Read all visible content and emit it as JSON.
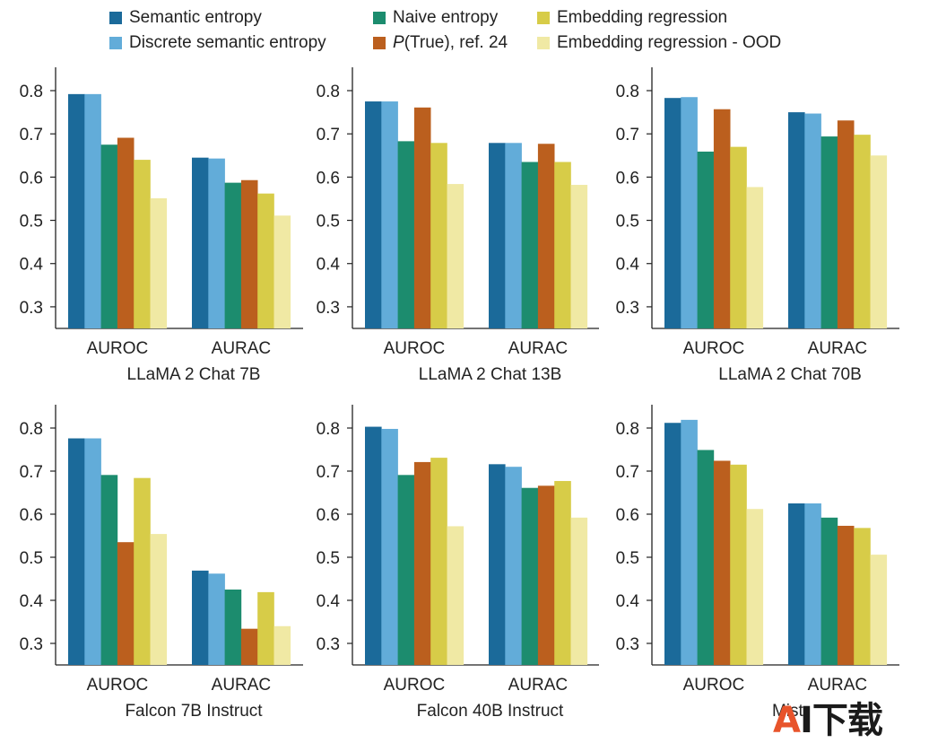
{
  "legend": [
    {
      "label": "Semantic entropy",
      "color": "#1b6a9a"
    },
    {
      "label": "Discrete semantic entropy",
      "color": "#62acd9"
    },
    {
      "label": "Naive entropy",
      "color": "#1c8c6e"
    },
    {
      "label": "P(True), ref. 24",
      "label_italic": "P",
      "label_rest": "(True), ref. 24",
      "color": "#bb5f1e"
    },
    {
      "label": "Embedding regression",
      "color": "#d7cc48"
    },
    {
      "label": "Embedding regression - OOD",
      "color": "#f0e9a4"
    }
  ],
  "watermark": {
    "a": "A",
    "rest": "I下载"
  },
  "chart_data": [
    {
      "type": "bar",
      "title": "LLaMA 2 Chat 7B",
      "categories": [
        "AUROC",
        "AURAC"
      ],
      "series": [
        {
          "name": "Semantic entropy",
          "values": [
            0.792,
            0.645
          ]
        },
        {
          "name": "Discrete semantic entropy",
          "values": [
            0.792,
            0.643
          ]
        },
        {
          "name": "Naive entropy",
          "values": [
            0.675,
            0.587
          ]
        },
        {
          "name": "P(True), ref. 24",
          "values": [
            0.691,
            0.593
          ]
        },
        {
          "name": "Embedding regression",
          "values": [
            0.64,
            0.562
          ]
        },
        {
          "name": "Embedding regression - OOD",
          "values": [
            0.551,
            0.511
          ]
        }
      ],
      "yticks": [
        "0.3",
        "0.4",
        "0.5",
        "0.6",
        "0.7",
        "0.8"
      ],
      "ylim": [
        0.25,
        0.85
      ]
    },
    {
      "type": "bar",
      "title": "LLaMA 2 Chat 13B",
      "categories": [
        "AUROC",
        "AURAC"
      ],
      "series": [
        {
          "name": "Semantic entropy",
          "values": [
            0.775,
            0.679
          ]
        },
        {
          "name": "Discrete semantic entropy",
          "values": [
            0.775,
            0.679
          ]
        },
        {
          "name": "Naive entropy",
          "values": [
            0.683,
            0.635
          ]
        },
        {
          "name": "P(True), ref. 24",
          "values": [
            0.761,
            0.677
          ]
        },
        {
          "name": "Embedding regression",
          "values": [
            0.679,
            0.635
          ]
        },
        {
          "name": "Embedding regression - OOD",
          "values": [
            0.584,
            0.582
          ]
        }
      ],
      "yticks": [
        "0.3",
        "0.4",
        "0.5",
        "0.6",
        "0.7",
        "0.8"
      ],
      "ylim": [
        0.25,
        0.85
      ]
    },
    {
      "type": "bar",
      "title": "LLaMA 2 Chat 70B",
      "categories": [
        "AUROC",
        "AURAC"
      ],
      "series": [
        {
          "name": "Semantic entropy",
          "values": [
            0.783,
            0.75
          ]
        },
        {
          "name": "Discrete semantic entropy",
          "values": [
            0.785,
            0.747
          ]
        },
        {
          "name": "Naive entropy",
          "values": [
            0.659,
            0.694
          ]
        },
        {
          "name": "P(True), ref. 24",
          "values": [
            0.757,
            0.731
          ]
        },
        {
          "name": "Embedding regression",
          "values": [
            0.67,
            0.698
          ]
        },
        {
          "name": "Embedding regression - OOD",
          "values": [
            0.577,
            0.65
          ]
        }
      ],
      "yticks": [
        "0.3",
        "0.4",
        "0.5",
        "0.6",
        "0.7",
        "0.8"
      ],
      "ylim": [
        0.25,
        0.85
      ]
    },
    {
      "type": "bar",
      "title": "Falcon 7B Instruct",
      "categories": [
        "AUROC",
        "AURAC"
      ],
      "series": [
        {
          "name": "Semantic entropy",
          "values": [
            0.776,
            0.469
          ]
        },
        {
          "name": "Discrete semantic entropy",
          "values": [
            0.776,
            0.462
          ]
        },
        {
          "name": "Naive entropy",
          "values": [
            0.691,
            0.425
          ]
        },
        {
          "name": "P(True), ref. 24",
          "values": [
            0.535,
            0.334
          ]
        },
        {
          "name": "Embedding regression",
          "values": [
            0.684,
            0.419
          ]
        },
        {
          "name": "Embedding regression - OOD",
          "values": [
            0.554,
            0.34
          ]
        }
      ],
      "yticks": [
        "0.3",
        "0.4",
        "0.5",
        "0.6",
        "0.7",
        "0.8"
      ],
      "ylim": [
        0.25,
        0.85
      ]
    },
    {
      "type": "bar",
      "title": "Falcon 40B Instruct",
      "categories": [
        "AUROC",
        "AURAC"
      ],
      "series": [
        {
          "name": "Semantic entropy",
          "values": [
            0.803,
            0.716
          ]
        },
        {
          "name": "Discrete semantic entropy",
          "values": [
            0.798,
            0.71
          ]
        },
        {
          "name": "Naive entropy",
          "values": [
            0.691,
            0.661
          ]
        },
        {
          "name": "P(True), ref. 24",
          "values": [
            0.721,
            0.666
          ]
        },
        {
          "name": "Embedding regression",
          "values": [
            0.731,
            0.677
          ]
        },
        {
          "name": "Embedding regression - OOD",
          "values": [
            0.572,
            0.592
          ]
        }
      ],
      "yticks": [
        "0.3",
        "0.4",
        "0.5",
        "0.6",
        "0.7",
        "0.8"
      ],
      "ylim": [
        0.25,
        0.85
      ]
    },
    {
      "type": "bar",
      "title": "Mistı",
      "categories": [
        "AUROC",
        "AURAC"
      ],
      "series": [
        {
          "name": "Semantic entropy",
          "values": [
            0.812,
            0.625
          ]
        },
        {
          "name": "Discrete semantic entropy",
          "values": [
            0.819,
            0.625
          ]
        },
        {
          "name": "Naive entropy",
          "values": [
            0.749,
            0.592
          ]
        },
        {
          "name": "P(True), ref. 24",
          "values": [
            0.724,
            0.573
          ]
        },
        {
          "name": "Embedding regression",
          "values": [
            0.715,
            0.568
          ]
        },
        {
          "name": "Embedding regression - OOD",
          "values": [
            0.612,
            0.506
          ]
        }
      ],
      "yticks": [
        "0.3",
        "0.4",
        "0.5",
        "0.6",
        "0.7",
        "0.8"
      ],
      "ylim": [
        0.25,
        0.85
      ]
    }
  ]
}
